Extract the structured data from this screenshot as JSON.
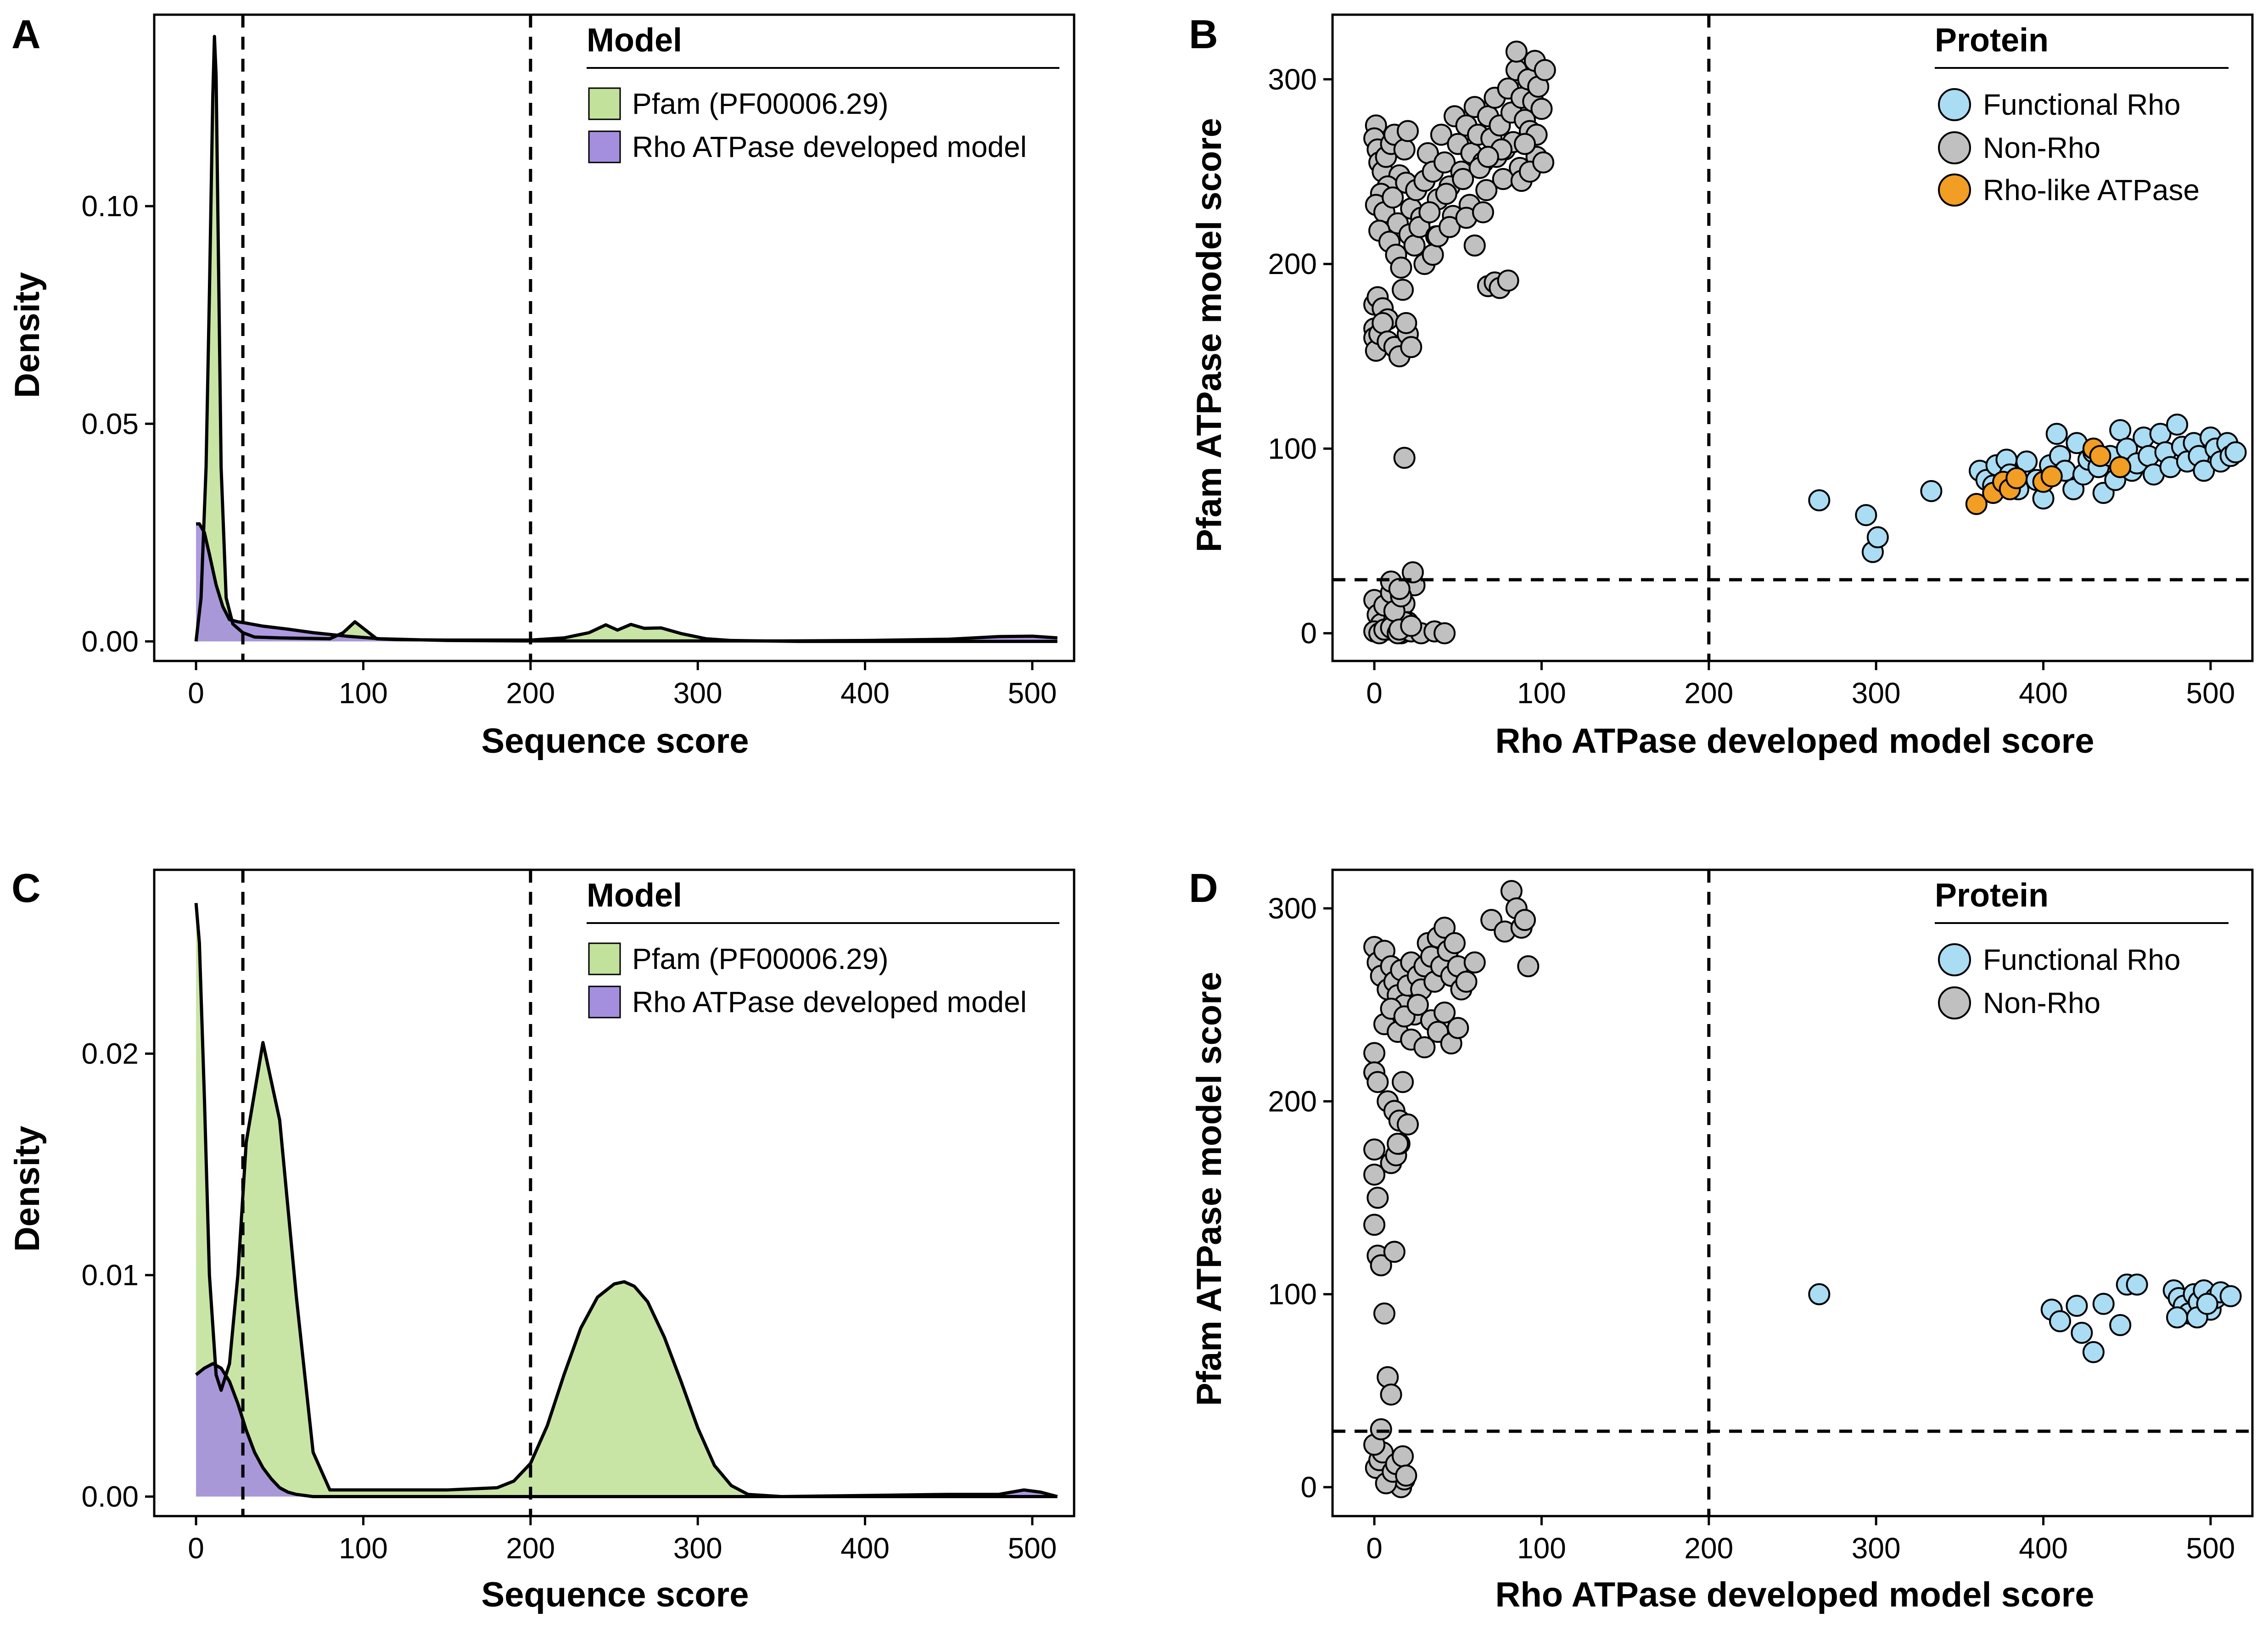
{
  "chart_data": [
    {
      "panel": "A",
      "type": "area",
      "xlabel": "Sequence score",
      "ylabel": "Density",
      "xlim": [
        -25,
        525
      ],
      "ylim": [
        -0.0045,
        0.144
      ],
      "xticks": [
        0,
        100,
        200,
        300,
        400,
        500
      ],
      "yticks": [
        0.0,
        0.05,
        0.1
      ],
      "ytick_labels": [
        "0.00",
        "0.05",
        "0.10"
      ],
      "reference_lines": {
        "x": [
          28,
          200
        ]
      },
      "legend": {
        "title": "Model",
        "placement": "top-right"
      },
      "series": [
        {
          "name": "Pfam (PF00006.29)",
          "color": "#c2e29b",
          "x": [
            0,
            3,
            6,
            8,
            10,
            11,
            12,
            13,
            15,
            18,
            22,
            28,
            35,
            50,
            80,
            88,
            95,
            100,
            108,
            120,
            150,
            200,
            220,
            235,
            245,
            252,
            260,
            268,
            278,
            290,
            305,
            320,
            360,
            420,
            480,
            515
          ],
          "y": [
            0.0,
            0.01,
            0.04,
            0.08,
            0.125,
            0.139,
            0.13,
            0.1,
            0.04,
            0.01,
            0.004,
            0.002,
            0.001,
            0.0008,
            0.0006,
            0.002,
            0.0045,
            0.003,
            0.0006,
            0.0004,
            0.0003,
            0.0003,
            0.0008,
            0.002,
            0.0038,
            0.0026,
            0.0039,
            0.003,
            0.0031,
            0.0018,
            0.0006,
            0.0002,
            0.0,
            0.0,
            0.0,
            0.0
          ]
        },
        {
          "name": "Rho ATPase developed model",
          "color": "#a48fde",
          "x": [
            0,
            2,
            5,
            8,
            12,
            16,
            20,
            25,
            30,
            40,
            55,
            70,
            90,
            110,
            150,
            200,
            250,
            300,
            350,
            400,
            450,
            480,
            500,
            515
          ],
          "y": [
            0.027,
            0.027,
            0.025,
            0.02,
            0.013,
            0.008,
            0.005,
            0.0045,
            0.0042,
            0.0035,
            0.0028,
            0.002,
            0.0012,
            0.0006,
            0.0002,
            0.0001,
            0.0001,
            0.0001,
            0.0001,
            0.0002,
            0.0005,
            0.0011,
            0.0012,
            0.0008
          ]
        }
      ]
    },
    {
      "panel": "B",
      "type": "scatter",
      "xlabel": "Rho ATPase developed model score",
      "ylabel": "Pfam ATPase model score",
      "xlim": [
        -25,
        525
      ],
      "ylim": [
        -15,
        335
      ],
      "xticks": [
        0,
        100,
        200,
        300,
        400,
        500
      ],
      "yticks": [
        0,
        100,
        200,
        300
      ],
      "reference_lines": {
        "x": [
          200
        ],
        "y": [
          29
        ]
      },
      "legend": {
        "title": "Protein",
        "placement": "top-right"
      },
      "series": [
        {
          "name": "Functional Rho",
          "color": "#aadcf3",
          "x": [
            266,
            294,
            298,
            301,
            333,
            362,
            366,
            370,
            372,
            378,
            380,
            385,
            390,
            396,
            400,
            404,
            408,
            410,
            413,
            418,
            420,
            424,
            427,
            430,
            433,
            436,
            440,
            443,
            446,
            450,
            453,
            456,
            460,
            463,
            466,
            470,
            473,
            476,
            480,
            483,
            486,
            490,
            493,
            496,
            500,
            503,
            506,
            510,
            512,
            515
          ],
          "y": [
            72,
            64,
            44,
            52,
            77,
            88,
            83,
            80,
            91,
            94,
            86,
            78,
            93,
            83,
            73,
            91,
            108,
            96,
            88,
            78,
            103,
            86,
            94,
            98,
            90,
            76,
            96,
            83,
            110,
            100,
            88,
            92,
            106,
            96,
            86,
            108,
            98,
            90,
            113,
            101,
            93,
            103,
            96,
            88,
            106,
            100,
            93,
            103,
            96,
            98
          ]
        },
        {
          "name": "Non-Rho",
          "color": "#c0c0c0",
          "x": [
            1,
            0,
            2,
            3,
            5,
            7,
            10,
            12,
            15,
            18,
            20,
            8,
            4,
            1,
            6,
            11,
            14,
            19,
            3,
            9,
            13,
            16,
            21,
            17,
            0,
            2,
            5,
            8,
            22,
            25,
            28,
            30,
            32,
            35,
            38,
            40,
            42,
            45,
            48,
            50,
            52,
            55,
            58,
            60,
            62,
            65,
            68,
            70,
            72,
            75,
            78,
            80,
            82,
            85,
            88,
            90,
            92,
            95,
            98,
            100,
            24,
            27,
            33,
            37,
            43,
            47,
            53,
            57,
            63,
            67,
            73,
            77,
            83,
            87,
            93,
            97,
            0,
            0,
            1,
            3,
            5,
            8,
            12,
            15,
            20,
            19,
            22,
            68,
            72,
            75,
            80,
            0,
            2,
            4,
            6,
            8,
            10,
            12,
            14,
            16,
            18,
            20,
            24,
            0,
            3,
            6,
            10,
            14,
            22,
            28,
            36,
            42,
            18,
            12,
            15,
            23,
            18,
            10,
            16,
            22,
            15,
            30,
            35,
            38,
            45,
            55,
            60,
            65,
            85,
            96,
            102,
            97,
            90,
            76,
            68,
            88,
            93,
            101
          ],
          "y": [
            275,
            268,
            262,
            255,
            250,
            258,
            265,
            270,
            248,
            262,
            272,
            242,
            238,
            232,
            228,
            236,
            222,
            244,
            218,
            212,
            205,
            198,
            216,
            186,
            178,
            182,
            176,
            170,
            230,
            240,
            225,
            245,
            260,
            250,
            235,
            270,
            255,
            242,
            280,
            265,
            250,
            275,
            260,
            285,
            270,
            255,
            280,
            268,
            290,
            275,
            262,
            295,
            282,
            305,
            290,
            278,
            300,
            288,
            296,
            284,
            210,
            220,
            228,
            215,
            238,
            226,
            246,
            232,
            252,
            240,
            258,
            246,
            266,
            252,
            272,
            258,
            165,
            160,
            153,
            162,
            168,
            158,
            155,
            150,
            162,
            168,
            155,
            188,
            190,
            187,
            191,
            18,
            10,
            5,
            15,
            2,
            22,
            8,
            12,
            0,
            16,
            6,
            26,
            1,
            0,
            2,
            3,
            0,
            1,
            0,
            1,
            0,
            6,
            12,
            2,
            33,
            95,
            28,
            20,
            4,
            24,
            200,
            205,
            215,
            220,
            225,
            210,
            228,
            315,
            310,
            305,
            270,
            265,
            262,
            258,
            245,
            250,
            255
          ]
        },
        {
          "name": "Rho-like ATPase",
          "color": "#f29d23",
          "x": [
            360,
            370,
            376,
            380,
            384,
            400,
            405,
            430,
            434,
            446
          ],
          "y": [
            70,
            76,
            82,
            78,
            84,
            82,
            85,
            100,
            96,
            90
          ]
        }
      ]
    },
    {
      "panel": "C",
      "type": "area",
      "xlabel": "Sequence score",
      "ylabel": "Density",
      "xlim": [
        -25,
        525
      ],
      "ylim": [
        -0.00088,
        0.0283
      ],
      "xticks": [
        0,
        100,
        200,
        300,
        400,
        500
      ],
      "yticks": [
        0.0,
        0.01,
        0.02
      ],
      "ytick_labels": [
        "0.00",
        "0.01",
        "0.02"
      ],
      "reference_lines": {
        "x": [
          28,
          200
        ]
      },
      "legend": {
        "title": "Model",
        "placement": "top-right"
      },
      "series": [
        {
          "name": "Pfam (PF00006.29)",
          "color": "#c2e29b",
          "x": [
            0,
            2,
            5,
            8,
            12,
            15,
            20,
            25,
            30,
            40,
            50,
            60,
            70,
            80,
            100,
            150,
            180,
            190,
            200,
            210,
            220,
            230,
            240,
            250,
            256,
            262,
            270,
            280,
            290,
            300,
            310,
            320,
            330,
            350,
            400,
            450,
            480,
            500,
            515
          ],
          "y": [
            0.0268,
            0.025,
            0.018,
            0.01,
            0.0055,
            0.0048,
            0.006,
            0.01,
            0.016,
            0.0205,
            0.017,
            0.009,
            0.002,
            0.0003,
            0.0003,
            0.0003,
            0.0004,
            0.0007,
            0.0015,
            0.0032,
            0.0055,
            0.0076,
            0.009,
            0.0096,
            0.0097,
            0.0095,
            0.0088,
            0.0072,
            0.0052,
            0.0031,
            0.0014,
            0.0005,
            0.0001,
            0.0,
            0.0,
            0.0,
            0.0,
            0.0,
            0.0
          ]
        },
        {
          "name": "Rho ATPase developed model",
          "color": "#a48fde",
          "x": [
            0,
            5,
            10,
            15,
            20,
            25,
            30,
            35,
            40,
            45,
            50,
            55,
            60,
            65,
            70,
            80,
            100,
            150,
            200,
            250,
            300,
            350,
            400,
            450,
            480,
            495,
            505,
            515
          ],
          "y": [
            0.0055,
            0.0058,
            0.006,
            0.0058,
            0.0052,
            0.0042,
            0.003,
            0.002,
            0.0013,
            0.0008,
            0.0004,
            0.0002,
            0.0001,
            5e-05,
            0.0,
            0.0,
            0.0,
            0.0,
            0.0,
            0.0,
            0.0,
            0.0,
            5e-05,
            0.0001,
            0.0001,
            0.0003,
            0.0002,
            0.0
          ]
        }
      ]
    },
    {
      "panel": "D",
      "type": "scatter",
      "xlabel": "Rho ATPase developed model score",
      "ylabel": "Pfam ATPase model score",
      "xlim": [
        -25,
        525
      ],
      "ylim": [
        -15,
        320
      ],
      "xticks": [
        0,
        100,
        200,
        300,
        400,
        500
      ],
      "yticks": [
        0,
        100,
        200,
        300
      ],
      "reference_lines": {
        "x": [
          200
        ],
        "y": [
          29
        ]
      },
      "legend": {
        "title": "Protein",
        "placement": "top-right"
      },
      "series": [
        {
          "name": "Functional Rho",
          "color": "#aadcf3",
          "x": [
            266,
            405,
            410,
            420,
            423,
            430,
            436,
            446,
            450,
            456,
            478,
            481,
            484,
            487,
            490,
            493,
            496,
            500,
            503,
            506,
            512,
            480,
            492,
            498
          ],
          "y": [
            100,
            92,
            86,
            94,
            80,
            70,
            95,
            84,
            105,
            105,
            102,
            98,
            94,
            90,
            100,
            96,
            102,
            92,
            98,
            101,
            99,
            88,
            88,
            95
          ]
        },
        {
          "name": "Non-Rho",
          "color": "#c0c0c0",
          "x": [
            0,
            2,
            4,
            6,
            8,
            10,
            12,
            14,
            16,
            18,
            20,
            22,
            24,
            26,
            28,
            30,
            32,
            34,
            36,
            38,
            40,
            42,
            44,
            46,
            48,
            50,
            52,
            55,
            60,
            70,
            78,
            82,
            85,
            88,
            90,
            92,
            6,
            10,
            14,
            18,
            22,
            26,
            30,
            34,
            38,
            42,
            46,
            50,
            0,
            0,
            2,
            8,
            12,
            15,
            20,
            17,
            0,
            0,
            2,
            10,
            13,
            15,
            0,
            2,
            4,
            6,
            8,
            10,
            12,
            14,
            16,
            18,
            1,
            3,
            5,
            7,
            11,
            13,
            17,
            19,
            0,
            4
          ],
          "y": [
            280,
            272,
            265,
            278,
            258,
            270,
            262,
            255,
            268,
            250,
            260,
            272,
            245,
            265,
            258,
            270,
            282,
            275,
            262,
            285,
            270,
            290,
            278,
            265,
            282,
            270,
            258,
            262,
            272,
            294,
            288,
            309,
            300,
            290,
            294,
            270,
            240,
            248,
            236,
            244,
            232,
            250,
            228,
            242,
            236,
            246,
            230,
            238,
            225,
            215,
            210,
            200,
            195,
            190,
            188,
            210,
            175,
            162,
            150,
            168,
            172,
            178,
            136,
            120,
            115,
            90,
            57,
            48,
            122,
            178,
            0,
            4,
            10,
            14,
            18,
            2,
            8,
            12,
            16,
            6,
            22,
            30
          ]
        }
      ]
    }
  ]
}
